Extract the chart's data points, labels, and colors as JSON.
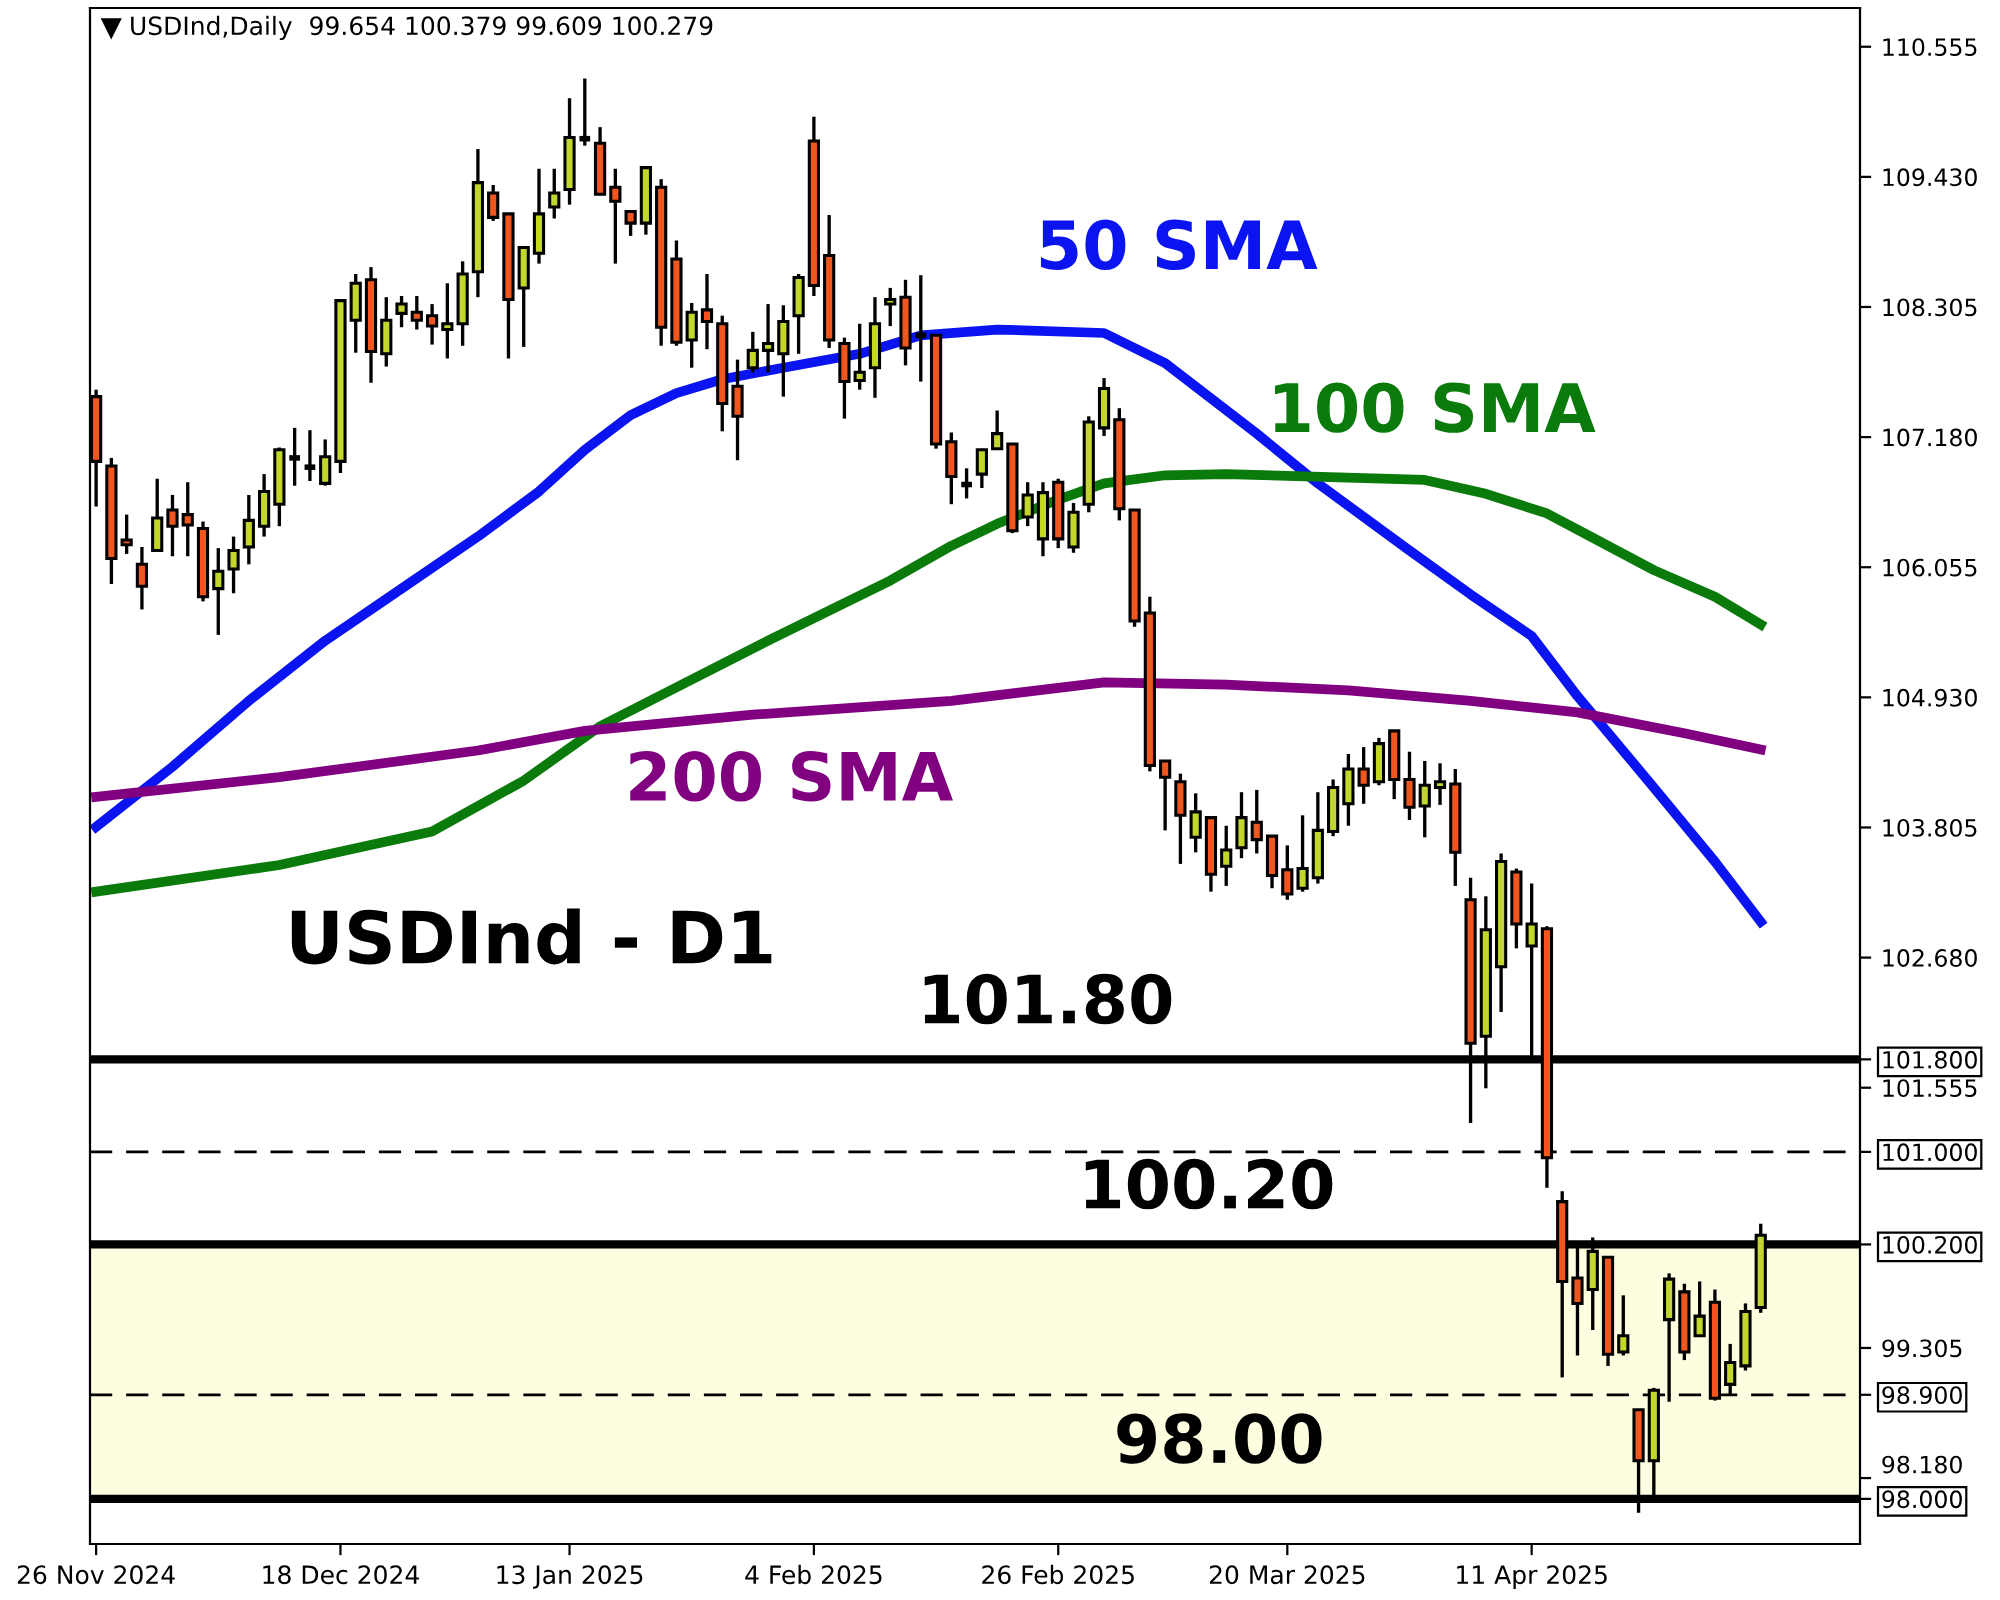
{
  "chart_data": {
    "type": "candlestick",
    "title": "USDInd,Daily  99.654 100.379 99.609 100.279",
    "categories": [
      "26 Nov 2024",
      null,
      null,
      null,
      null,
      null,
      null,
      null,
      null,
      null,
      null,
      null,
      null,
      null,
      null,
      null,
      "18 Dec 2024",
      null,
      null,
      null,
      null,
      null,
      null,
      null,
      null,
      null,
      null,
      null,
      null,
      null,
      null,
      "13 Jan 2025",
      null,
      null,
      null,
      null,
      null,
      null,
      null,
      null,
      null,
      null,
      null,
      null,
      null,
      null,
      null,
      "4 Feb 2025",
      null,
      null,
      null,
      null,
      null,
      null,
      null,
      null,
      null,
      null,
      null,
      null,
      null,
      null,
      null,
      "26 Feb 2025",
      null,
      null,
      null,
      null,
      null,
      null,
      null,
      null,
      null,
      null,
      null,
      null,
      null,
      null,
      "20 Mar 2025",
      null,
      null,
      null,
      null,
      null,
      null,
      null,
      null,
      null,
      null,
      null,
      null,
      null,
      null,
      null,
      "11 Apr 2025",
      null,
      null,
      null,
      null,
      null,
      null,
      null,
      null,
      null,
      null,
      null,
      null,
      null,
      null,
      null
    ],
    "ohlc": [
      [
        107.53,
        107.59,
        106.58,
        106.97
      ],
      [
        106.93,
        107.0,
        105.91,
        106.13
      ],
      [
        106.29,
        106.51,
        106.17,
        106.25
      ],
      [
        106.08,
        106.23,
        105.69,
        105.89
      ],
      [
        106.2,
        106.82,
        106.19,
        106.48
      ],
      [
        106.55,
        106.68,
        106.15,
        106.41
      ],
      [
        106.51,
        106.79,
        106.15,
        106.42
      ],
      [
        106.39,
        106.45,
        105.76,
        105.8
      ],
      [
        105.87,
        106.22,
        105.47,
        106.02
      ],
      [
        106.04,
        106.32,
        105.83,
        106.2
      ],
      [
        106.23,
        106.68,
        106.08,
        106.46
      ],
      [
        106.41,
        106.86,
        106.32,
        106.71
      ],
      [
        106.6,
        107.09,
        106.41,
        107.07
      ],
      [
        107.0,
        107.26,
        106.76,
        107.0
      ],
      [
        106.92,
        107.24,
        106.8,
        106.92
      ],
      [
        106.78,
        107.16,
        106.76,
        107.01
      ],
      [
        106.97,
        108.36,
        106.87,
        108.36
      ],
      [
        108.19,
        108.59,
        107.91,
        108.51
      ],
      [
        108.54,
        108.65,
        107.65,
        107.92
      ],
      [
        107.9,
        108.39,
        107.79,
        108.19
      ],
      [
        108.25,
        108.4,
        108.13,
        108.33
      ],
      [
        108.26,
        108.4,
        108.11,
        108.19
      ],
      [
        108.23,
        108.33,
        107.98,
        108.14
      ],
      [
        108.11,
        108.51,
        107.86,
        108.16
      ],
      [
        108.16,
        108.7,
        107.97,
        108.59
      ],
      [
        108.61,
        109.67,
        108.39,
        109.38
      ],
      [
        109.29,
        109.36,
        109.05,
        109.08
      ],
      [
        109.11,
        109.11,
        107.86,
        108.37
      ],
      [
        108.47,
        108.82,
        107.96,
        108.82
      ],
      [
        108.77,
        109.5,
        108.68,
        109.11
      ],
      [
        109.17,
        109.5,
        109.07,
        109.29
      ],
      [
        109.32,
        110.11,
        109.19,
        109.77
      ],
      [
        109.76,
        110.28,
        109.7,
        109.76
      ],
      [
        109.72,
        109.86,
        109.27,
        109.28
      ],
      [
        109.34,
        109.5,
        108.68,
        109.22
      ],
      [
        109.13,
        109.13,
        108.92,
        109.03
      ],
      [
        109.03,
        109.51,
        108.93,
        109.51
      ],
      [
        109.34,
        109.41,
        107.97,
        108.13
      ],
      [
        108.72,
        108.88,
        107.97,
        108.0
      ],
      [
        108.02,
        108.34,
        107.78,
        108.26
      ],
      [
        108.28,
        108.59,
        107.94,
        108.18
      ],
      [
        108.16,
        108.23,
        107.23,
        107.47
      ],
      [
        107.62,
        107.85,
        106.98,
        107.36
      ],
      [
        107.78,
        108.09,
        107.74,
        107.93
      ],
      [
        107.93,
        108.33,
        107.74,
        107.99
      ],
      [
        107.9,
        108.32,
        107.53,
        108.18
      ],
      [
        108.23,
        108.59,
        107.9,
        108.56
      ],
      [
        109.74,
        109.95,
        108.4,
        108.49
      ],
      [
        108.75,
        109.1,
        107.95,
        108.02
      ],
      [
        107.99,
        108.04,
        107.34,
        107.66
      ],
      [
        107.67,
        108.16,
        107.59,
        107.74
      ],
      [
        107.78,
        108.39,
        107.52,
        108.16
      ],
      [
        108.33,
        108.47,
        108.14,
        108.37
      ],
      [
        108.39,
        108.54,
        107.8,
        107.95
      ],
      [
        108.06,
        108.58,
        107.66,
        108.06
      ],
      [
        108.06,
        108.06,
        107.08,
        107.12
      ],
      [
        107.14,
        107.22,
        106.6,
        106.84
      ],
      [
        106.77,
        106.91,
        106.65,
        106.77
      ],
      [
        106.86,
        107.08,
        106.74,
        107.07
      ],
      [
        107.08,
        107.41,
        107.07,
        107.21
      ],
      [
        107.12,
        107.12,
        106.35,
        106.37
      ],
      [
        106.49,
        106.79,
        106.41,
        106.68
      ],
      [
        106.3,
        106.79,
        106.15,
        106.7
      ],
      [
        106.79,
        106.82,
        106.22,
        106.3
      ],
      [
        106.23,
        106.61,
        106.18,
        106.53
      ],
      [
        106.6,
        107.36,
        106.53,
        107.31
      ],
      [
        107.26,
        107.69,
        107.19,
        107.6
      ],
      [
        107.33,
        107.43,
        106.46,
        106.56
      ],
      [
        106.55,
        106.55,
        105.54,
        105.59
      ],
      [
        105.66,
        105.8,
        104.29,
        104.34
      ],
      [
        104.38,
        104.38,
        103.78,
        104.24
      ],
      [
        104.2,
        104.27,
        103.49,
        103.91
      ],
      [
        103.72,
        104.1,
        103.59,
        103.94
      ],
      [
        103.89,
        103.89,
        103.25,
        103.4
      ],
      [
        103.47,
        103.82,
        103.3,
        103.61
      ],
      [
        103.63,
        104.11,
        103.54,
        103.89
      ],
      [
        103.85,
        104.13,
        103.58,
        103.7
      ],
      [
        103.73,
        103.73,
        103.28,
        103.39
      ],
      [
        103.44,
        103.65,
        103.18,
        103.23
      ],
      [
        103.28,
        103.91,
        103.25,
        103.45
      ],
      [
        103.37,
        104.11,
        103.32,
        103.78
      ],
      [
        103.77,
        104.22,
        103.73,
        104.15
      ],
      [
        104.01,
        104.44,
        103.82,
        104.31
      ],
      [
        104.31,
        104.5,
        104.01,
        104.17
      ],
      [
        104.2,
        104.58,
        104.17,
        104.53
      ],
      [
        104.64,
        104.64,
        104.05,
        104.22
      ],
      [
        104.22,
        104.46,
        103.87,
        103.98
      ],
      [
        103.99,
        104.38,
        103.72,
        104.17
      ],
      [
        104.15,
        104.36,
        104.0,
        104.2
      ],
      [
        104.18,
        104.31,
        103.3,
        103.59
      ],
      [
        103.18,
        103.37,
        101.25,
        101.94
      ],
      [
        102.0,
        103.21,
        101.55,
        102.92
      ],
      [
        102.6,
        103.58,
        102.21,
        103.51
      ],
      [
        103.42,
        103.45,
        102.76,
        102.97
      ],
      [
        102.78,
        103.32,
        101.83,
        102.97
      ],
      [
        102.93,
        102.95,
        100.69,
        100.95
      ],
      [
        100.57,
        100.66,
        99.05,
        99.88
      ],
      [
        99.91,
        100.17,
        99.24,
        99.69
      ],
      [
        99.81,
        100.26,
        99.46,
        100.14
      ],
      [
        100.09,
        100.09,
        99.15,
        99.25
      ],
      [
        99.27,
        99.76,
        99.24,
        99.41
      ],
      [
        98.77,
        98.77,
        97.88,
        98.33
      ],
      [
        98.33,
        98.96,
        98.0,
        98.94
      ],
      [
        99.55,
        99.95,
        98.84,
        99.9
      ],
      [
        99.79,
        99.86,
        99.2,
        99.27
      ],
      [
        99.41,
        99.88,
        99.41,
        99.58
      ],
      [
        99.7,
        99.81,
        98.85,
        98.87
      ],
      [
        98.99,
        99.34,
        98.89,
        99.18
      ],
      [
        99.15,
        99.69,
        99.11,
        99.62
      ],
      [
        99.654,
        100.379,
        99.609,
        100.279
      ]
    ],
    "colors": [
      "#f0571f",
      "#f0571f",
      "#f0571f",
      "#f0571f",
      "#c3d62b",
      "#f0571f",
      "#f0571f",
      "#f0571f",
      "#c3d62b",
      "#c3d62b",
      "#c3d62b",
      "#c3d62b",
      "#c3d62b",
      "#000000",
      "#000000",
      "#c3d62b",
      "#c3d62b",
      "#c3d62b",
      "#f0571f",
      "#c3d62b",
      "#c3d62b",
      "#f0571f",
      "#f0571f",
      "#c3d62b",
      "#c3d62b",
      "#c3d62b",
      "#f0571f",
      "#f0571f",
      "#c3d62b",
      "#c3d62b",
      "#c3d62b",
      "#c3d62b",
      "#000000",
      "#f0571f",
      "#f0571f",
      "#f0571f",
      "#c3d62b",
      "#f0571f",
      "#f0571f",
      "#c3d62b",
      "#f0571f",
      "#f0571f",
      "#f0571f",
      "#c3d62b",
      "#c3d62b",
      "#c3d62b",
      "#c3d62b",
      "#f0571f",
      "#f0571f",
      "#f0571f",
      "#c3d62b",
      "#c3d62b",
      "#c3d62b",
      "#f0571f",
      "#000000",
      "#f0571f",
      "#f0571f",
      "#000000",
      "#c3d62b",
      "#c3d62b",
      "#f0571f",
      "#c3d62b",
      "#c3d62b",
      "#f0571f",
      "#c3d62b",
      "#c3d62b",
      "#c3d62b",
      "#f0571f",
      "#f0571f",
      "#f0571f",
      "#f0571f",
      "#f0571f",
      "#c3d62b",
      "#f0571f",
      "#c3d62b",
      "#c3d62b",
      "#f0571f",
      "#f0571f",
      "#f0571f",
      "#c3d62b",
      "#c3d62b",
      "#c3d62b",
      "#c3d62b",
      "#f0571f",
      "#c3d62b",
      "#f0571f",
      "#f0571f",
      "#c3d62b",
      "#c3d62b",
      "#f0571f",
      "#f0571f",
      "#c3d62b",
      "#c3d62b",
      "#f0571f",
      "#c3d62b",
      "#f0571f",
      "#f0571f",
      "#f0571f",
      "#c3d62b",
      "#f0571f",
      "#c3d62b",
      "#f0571f",
      "#c3d62b",
      "#c3d62b",
      "#f0571f",
      "#c3d62b",
      "#f0571f",
      "#c3d62b",
      "#c3d62b",
      "#c3d62b"
    ],
    "series": [
      {
        "type": "line",
        "name": "50 SMA",
        "color": "#0a14f0",
        "values": [
          103.81,
          null,
          null,
          null,
          null,
          104.33,
          null,
          null,
          null,
          null,
          104.9,
          null,
          null,
          null,
          null,
          105.42,
          null,
          null,
          null,
          null,
          105.87,
          null,
          null,
          null,
          null,
          106.32,
          null,
          null,
          null,
          106.71,
          null,
          null,
          107.07,
          null,
          null,
          107.37,
          null,
          null,
          107.56,
          null,
          null,
          107.68,
          null,
          null,
          null,
          107.78,
          null,
          null,
          null,
          null,
          107.9,
          null,
          null,
          null,
          108.06,
          null,
          null,
          null,
          null,
          108.11,
          null,
          null,
          null,
          null,
          null,
          null,
          108.08,
          null,
          null,
          null,
          107.82,
          null,
          null,
          null,
          null,
          null,
          107.21,
          null,
          null,
          null,
          106.78,
          null,
          null,
          null,
          null,
          null,
          106.2,
          null,
          null,
          null,
          105.82,
          null,
          null,
          null,
          105.46,
          null,
          null,
          104.94,
          null,
          null,
          null,
          null,
          104.15,
          null,
          null,
          null,
          103.51,
          null,
          null,
          102.99
        ]
      },
      {
        "type": "line",
        "name": "100 SMA",
        "color": "#0a7a0a",
        "values": [
          103.25,
          null,
          null,
          null,
          null,
          null,
          null,
          null,
          null,
          null,
          null,
          null,
          103.48,
          null,
          null,
          null,
          null,
          null,
          null,
          null,
          null,
          null,
          103.77,
          null,
          null,
          null,
          null,
          null,
          104.21,
          null,
          null,
          null,
          null,
          104.68,
          null,
          null,
          null,
          null,
          null,
          null,
          null,
          null,
          null,
          null,
          105.42,
          null,
          null,
          null,
          105.68,
          null,
          null,
          null,
          105.94,
          null,
          null,
          null,
          106.24,
          null,
          null,
          106.43,
          null,
          null,
          null,
          106.64,
          null,
          null,
          106.78,
          null,
          null,
          null,
          106.85,
          null,
          null,
          null,
          106.86,
          null,
          null,
          null,
          null,
          null,
          null,
          null,
          null,
          null,
          null,
          null,
          null,
          106.81,
          null,
          null,
          null,
          106.69,
          null,
          null,
          null,
          106.52,
          null,
          106.38,
          null,
          null,
          null,
          null,
          106.03,
          null,
          null,
          null,
          105.8,
          null,
          null,
          105.56
        ]
      },
      {
        "type": "line",
        "name": "200 SMA",
        "color": "#800080",
        "values": [
          104.07,
          null,
          null,
          null,
          null,
          null,
          null,
          null,
          null,
          null,
          null,
          null,
          104.24,
          null,
          null,
          null,
          null,
          null,
          null,
          null,
          null,
          null,
          null,
          null,
          null,
          104.47,
          null,
          null,
          null,
          null,
          null,
          null,
          104.64,
          null,
          null,
          null,
          null,
          null,
          null,
          null,
          null,
          null,
          null,
          104.78,
          null,
          null,
          null,
          null,
          null,
          null,
          null,
          null,
          null,
          null,
          null,
          null,
          104.9,
          null,
          null,
          null,
          null,
          null,
          null,
          null,
          null,
          null,
          105.06,
          null,
          null,
          null,
          null,
          null,
          null,
          null,
          105.04,
          null,
          null,
          null,
          null,
          null,
          null,
          null,
          104.99,
          null,
          null,
          null,
          null,
          null,
          null,
          null,
          104.9,
          null,
          null,
          null,
          null,
          null,
          null,
          104.8,
          null,
          null,
          null,
          null,
          null,
          null,
          104.62,
          null,
          null,
          null,
          null,
          104.48
        ]
      }
    ],
    "ref_lines": [
      {
        "axis": "y",
        "value": 101.8,
        "label": "101.80",
        "line_style": "solid"
      },
      {
        "axis": "y",
        "value": 100.2,
        "label": "100.20",
        "line_style": "solid"
      },
      {
        "axis": "y",
        "value": 98.0,
        "label": "98.00",
        "line_style": "solid"
      },
      {
        "axis": "y",
        "value": 101.0,
        "line_style": "dashed"
      },
      {
        "axis": "y",
        "value": 98.9,
        "line_style": "dashed"
      }
    ],
    "bands": [
      {
        "axis": "y",
        "from": 98.0,
        "to": 100.2,
        "color": "#fdfde0"
      }
    ],
    "annotations": [
      "USDInd - D1"
    ],
    "ylim": [
      97.61,
      110.89
    ],
    "yticks": [
      {
        "value": 110.555,
        "label": "110.555"
      },
      {
        "value": 109.43,
        "label": "109.430"
      },
      {
        "value": 108.305,
        "label": "108.305"
      },
      {
        "value": 107.18,
        "label": "107.180"
      },
      {
        "value": 106.055,
        "label": "106.055"
      },
      {
        "value": 104.93,
        "label": "104.930"
      },
      {
        "value": 103.805,
        "label": "103.805"
      },
      {
        "value": 102.68,
        "label": "102.680"
      },
      {
        "value": 101.8,
        "label": "101.800"
      },
      {
        "value": 101.555,
        "label": "101.555"
      },
      {
        "value": 101.0,
        "label": "101.000"
      },
      {
        "value": 100.2,
        "label": "100.200"
      },
      {
        "value": 99.305,
        "label": "99.305"
      },
      {
        "value": 98.9,
        "label": "98.900"
      },
      {
        "value": 98.18,
        "label": "98.180"
      },
      {
        "value": 98.0,
        "label": "98.000"
      }
    ],
    "tick_labels": "xy2",
    "grid": false,
    "legend": false
  }
}
